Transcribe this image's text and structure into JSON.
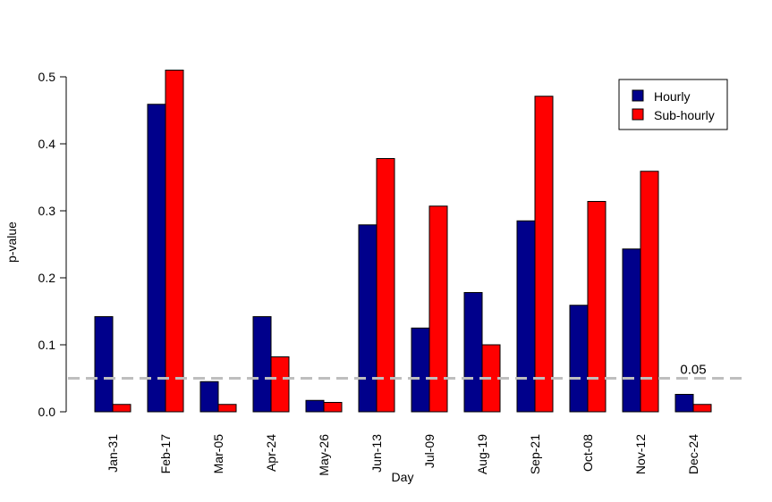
{
  "chart_data": {
    "type": "bar",
    "title": "",
    "xlabel": "Day",
    "ylabel": "p-value",
    "ylim": [
      0,
      0.5
    ],
    "yticks": [
      "0.0",
      "0.1",
      "0.2",
      "0.3",
      "0.4",
      "0.5"
    ],
    "categories": [
      "Jan-31",
      "Feb-17",
      "Mar-05",
      "Apr-24",
      "May-26",
      "Jun-13",
      "Jul-09",
      "Aug-19",
      "Sep-21",
      "Oct-08",
      "Nov-12",
      "Dec-24"
    ],
    "series": [
      {
        "name": "Hourly",
        "color": "#00008b",
        "values": [
          0.142,
          0.459,
          0.045,
          0.142,
          0.017,
          0.279,
          0.125,
          0.178,
          0.285,
          0.159,
          0.243,
          0.026
        ]
      },
      {
        "name": "Sub-hourly",
        "color": "#ff0000",
        "values": [
          0.011,
          0.51,
          0.011,
          0.082,
          0.014,
          0.378,
          0.307,
          0.1,
          0.471,
          0.314,
          0.359,
          0.011
        ]
      }
    ],
    "reference_line": {
      "value": 0.05,
      "label": "0.05",
      "color": "#bebebe",
      "style": "dashed"
    },
    "legend_position": "top-right",
    "grid": false
  }
}
